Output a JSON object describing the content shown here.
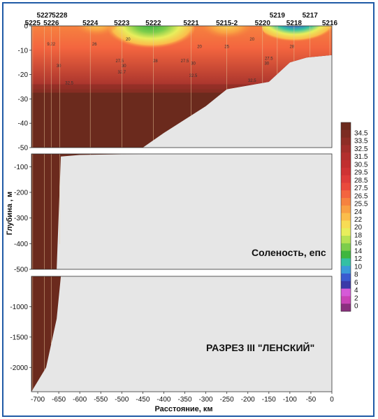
{
  "chart_data": {
    "type": "heatmap",
    "title": "РАЗРЕЗ III  \"ЛЕНСКИЙ\"",
    "subtitle": "Соленость, епс",
    "xlabel": "Расстояние, км",
    "ylabel": "Глубина , м",
    "xlim": [
      -715,
      0
    ],
    "x_ticks": [
      "-700",
      "-650",
      "-600",
      "-550",
      "-500",
      "-450",
      "-400",
      "-350",
      "-300",
      "-250",
      "-200",
      "-150",
      "-100",
      "-50",
      "0"
    ],
    "panels": [
      {
        "name": "upper",
        "ylim": [
          -50,
          0
        ],
        "y_ticks": [
          "0",
          "-10",
          "-20",
          "-30",
          "-40",
          "-50"
        ]
      },
      {
        "name": "middle",
        "ylim": [
          -500,
          -50
        ],
        "y_ticks": [
          "-100",
          "-200",
          "-300",
          "-400",
          "-500"
        ]
      },
      {
        "name": "lower",
        "ylim": [
          -2400,
          -500
        ],
        "y_ticks": [
          "-1000",
          "-1500",
          "-2000"
        ]
      }
    ],
    "stations": [
      {
        "name": "5225",
        "x": -712
      },
      {
        "name": "5227",
        "x": -684
      },
      {
        "name": "5226",
        "x": -668
      },
      {
        "name": "5228",
        "x": -648
      },
      {
        "name": "5224",
        "x": -575
      },
      {
        "name": "5223",
        "x": -500
      },
      {
        "name": "5222",
        "x": -425
      },
      {
        "name": "5221",
        "x": -335
      },
      {
        "name": "5215-2",
        "x": -250
      },
      {
        "name": "5220",
        "x": -165
      },
      {
        "name": "5219",
        "x": -130
      },
      {
        "name": "5218",
        "x": -90
      },
      {
        "name": "5217",
        "x": -52
      },
      {
        "name": "5216",
        "x": -5
      }
    ],
    "bottom_profile": [
      [
        -715,
        -2400
      ],
      [
        -680,
        -2000
      ],
      [
        -655,
        -1200
      ],
      [
        -645,
        -60
      ],
      [
        -600,
        -54
      ],
      [
        -450,
        -50
      ],
      [
        -400,
        -44
      ],
      [
        -300,
        -33
      ],
      [
        -250,
        -26
      ],
      [
        -150,
        -23
      ],
      [
        -100,
        -15
      ],
      [
        -60,
        -13
      ],
      [
        0,
        -12
      ]
    ],
    "isoline_labels": [
      {
        "x": -668,
        "y": -8,
        "label": "9.22"
      },
      {
        "x": -565,
        "y": -8,
        "label": "26"
      },
      {
        "x": -485,
        "y": -6,
        "label": "20"
      },
      {
        "x": -505,
        "y": -15,
        "label": "27.5"
      },
      {
        "x": -495,
        "y": -17,
        "label": "30"
      },
      {
        "x": -650,
        "y": -17,
        "label": "30"
      },
      {
        "x": -500,
        "y": -19.5,
        "label": "32.7"
      },
      {
        "x": -625,
        "y": -24,
        "label": "32.5"
      },
      {
        "x": -420,
        "y": -15,
        "label": "28"
      },
      {
        "x": -315,
        "y": -9,
        "label": "20"
      },
      {
        "x": -350,
        "y": -15,
        "label": "27.5"
      },
      {
        "x": -330,
        "y": -16,
        "label": "30"
      },
      {
        "x": -330,
        "y": -21,
        "label": "32.5"
      },
      {
        "x": -250,
        "y": -9,
        "label": "25"
      },
      {
        "x": -190,
        "y": -6,
        "label": "20"
      },
      {
        "x": -150,
        "y": -14,
        "label": "27.5"
      },
      {
        "x": -155,
        "y": -16,
        "label": "30"
      },
      {
        "x": -190,
        "y": -23,
        "label": "32.5"
      },
      {
        "x": -95,
        "y": -9,
        "label": "28"
      }
    ],
    "colorbar": {
      "labels": [
        "34.5",
        "33.5",
        "32.5",
        "31.5",
        "30.5",
        "29.5",
        "28.5",
        "27.5",
        "26.5",
        "25.5",
        "24",
        "22",
        "20",
        "18",
        "16",
        "14",
        "12",
        "10",
        "8",
        "6",
        "4",
        "2",
        "0"
      ],
      "colors": [
        "#6b2a1d",
        "#7c2c22",
        "#8e2e26",
        "#a12f2b",
        "#b3302e",
        "#c12f2f",
        "#cf3334",
        "#de3c3a",
        "#ea4a3c",
        "#f3653f",
        "#f6823f",
        "#f9a043",
        "#fbbd4b",
        "#f8dc55",
        "#e8ee5c",
        "#b7e253",
        "#7dcd4b",
        "#3fb63f",
        "#34c0a3",
        "#3b9ad9",
        "#3a5bd0",
        "#3a3aa8",
        "#d65ad8",
        "#c943b6",
        "#8a2f7e"
      ]
    },
    "colors": {
      "land": "#e6e6e6",
      "deep": "#6b2a1d",
      "frame": "#1f5aa6"
    }
  }
}
